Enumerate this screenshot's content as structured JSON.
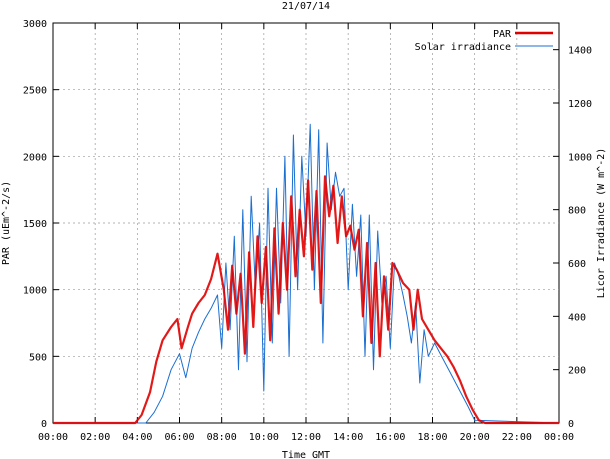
{
  "chart_data": {
    "type": "line",
    "title": "21/07/14",
    "xlabel": "Time GMT",
    "ylabel": "PAR (uEm^-2/s)",
    "y2label": "Licor Irradiance (W m^-2)",
    "xlim": [
      0,
      24
    ],
    "ylim": [
      0,
      3000
    ],
    "y2lim": [
      0,
      1500
    ],
    "grid": true,
    "legend_position": "top-right",
    "x_ticks": [
      0,
      2,
      4,
      6,
      8,
      10,
      12,
      14,
      16,
      18,
      20,
      22,
      24
    ],
    "x_tick_labels": [
      "00:00",
      "02:00",
      "04:00",
      "06:00",
      "08:00",
      "10:00",
      "12:00",
      "14:00",
      "16:00",
      "18:00",
      "20:00",
      "22:00",
      "00:00"
    ],
    "y_ticks": [
      0,
      500,
      1000,
      1500,
      2000,
      2500,
      3000
    ],
    "y2_ticks": [
      0,
      200,
      400,
      600,
      800,
      1000,
      1200,
      1400
    ],
    "series": [
      {
        "name": "PAR",
        "axis": "left",
        "color": "#e00000",
        "x": [
          0,
          3.9,
          4.2,
          4.6,
          4.9,
          5.2,
          5.6,
          5.9,
          6.1,
          6.4,
          6.6,
          6.9,
          7.2,
          7.5,
          7.8,
          8.1,
          8.3,
          8.5,
          8.7,
          8.9,
          9.1,
          9.3,
          9.5,
          9.7,
          9.9,
          10.1,
          10.3,
          10.5,
          10.7,
          10.9,
          11.1,
          11.3,
          11.5,
          11.7,
          11.9,
          12.1,
          12.3,
          12.5,
          12.7,
          12.9,
          13.1,
          13.3,
          13.5,
          13.7,
          13.9,
          14.1,
          14.3,
          14.5,
          14.7,
          14.9,
          15.1,
          15.3,
          15.5,
          15.7,
          15.9,
          16.1,
          16.3,
          16.6,
          16.9,
          17.1,
          17.3,
          17.5,
          17.8,
          18.1,
          18.4,
          18.7,
          19.0,
          19.3,
          19.6,
          19.9,
          20.2,
          20.5,
          24
        ],
        "values": [
          0,
          0,
          60,
          230,
          460,
          620,
          720,
          780,
          560,
          720,
          820,
          900,
          960,
          1080,
          1270,
          1000,
          700,
          1180,
          820,
          1120,
          520,
          1280,
          720,
          1400,
          900,
          1320,
          620,
          1460,
          820,
          1500,
          1000,
          1700,
          1100,
          1600,
          1250,
          1820,
          1150,
          1740,
          900,
          1850,
          1550,
          1780,
          1350,
          1700,
          1400,
          1480,
          1300,
          1450,
          800,
          1350,
          600,
          1200,
          500,
          1100,
          700,
          1200,
          1150,
          1050,
          1000,
          700,
          1000,
          780,
          700,
          620,
          560,
          500,
          420,
          320,
          200,
          100,
          20,
          0,
          0
        ]
      },
      {
        "name": "Solar irradiance",
        "axis": "right",
        "color": "#1a6fd0",
        "x": [
          0,
          4.4,
          4.8,
          5.2,
          5.6,
          6.0,
          6.3,
          6.6,
          6.9,
          7.2,
          7.5,
          7.8,
          8.0,
          8.2,
          8.4,
          8.6,
          8.8,
          9.0,
          9.2,
          9.4,
          9.6,
          9.8,
          10.0,
          10.2,
          10.4,
          10.6,
          10.8,
          11.0,
          11.2,
          11.4,
          11.6,
          11.8,
          12.0,
          12.2,
          12.4,
          12.6,
          12.8,
          13.0,
          13.2,
          13.4,
          13.6,
          13.8,
          14.0,
          14.2,
          14.4,
          14.6,
          14.8,
          15.0,
          15.2,
          15.4,
          15.6,
          15.8,
          16.0,
          16.2,
          16.4,
          16.6,
          16.8,
          17.0,
          17.2,
          17.4,
          17.6,
          17.8,
          18.1,
          18.5,
          18.9,
          19.3,
          19.7,
          20.0,
          24
        ],
        "values": [
          0,
          0,
          40,
          100,
          200,
          260,
          170,
          280,
          340,
          390,
          430,
          480,
          280,
          600,
          350,
          700,
          200,
          800,
          230,
          850,
          500,
          750,
          120,
          880,
          300,
          880,
          450,
          1000,
          250,
          1080,
          500,
          1000,
          700,
          1120,
          500,
          1100,
          300,
          1050,
          800,
          940,
          850,
          880,
          500,
          820,
          550,
          780,
          250,
          780,
          200,
          720,
          450,
          550,
          280,
          600,
          550,
          480,
          400,
          300,
          450,
          150,
          350,
          250,
          300,
          240,
          180,
          120,
          60,
          10,
          0
        ]
      }
    ]
  }
}
